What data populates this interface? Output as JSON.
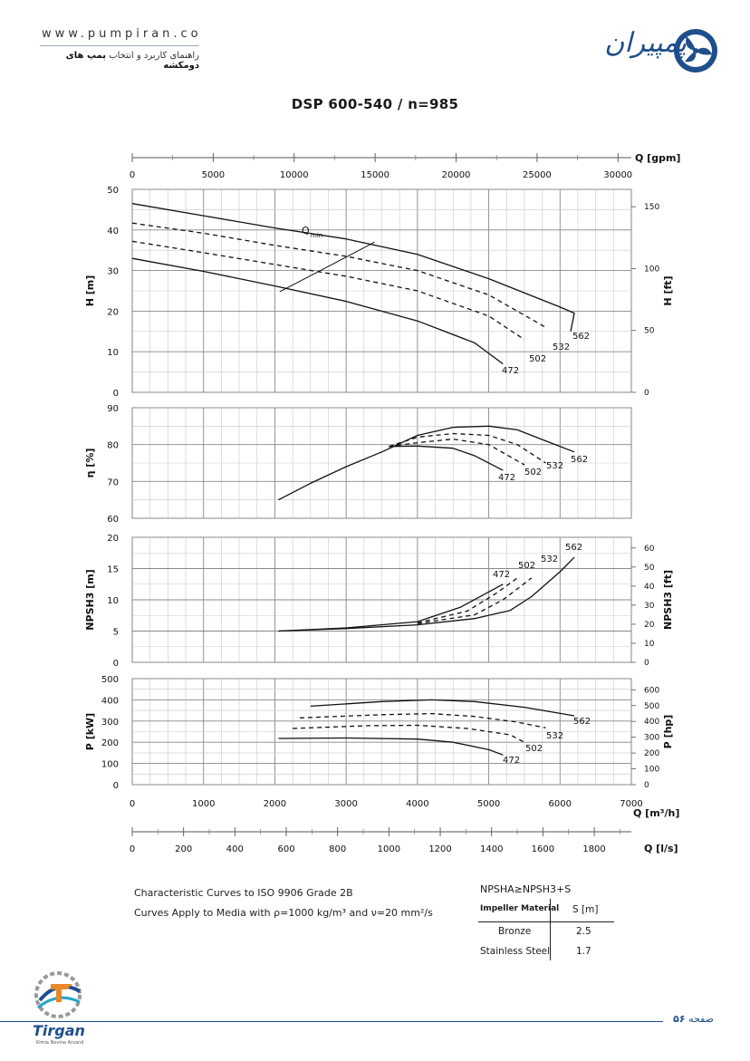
{
  "header": {
    "url": "www.pumpiran.co",
    "subtitle_prefix": "راهنمای کاربرد و انتخاب",
    "subtitle_bold": "پمپ های دومکشه",
    "brand": "پمپیران"
  },
  "title": "DSP 600-540 / n=985",
  "colors": {
    "brand": "#1f4e8c",
    "grid": "#8c8c8c",
    "curve": "#1a1a1a"
  },
  "chart_data": [
    {
      "type": "line",
      "panel": "head",
      "ylabel": "H [m]",
      "ylabel_right": "H [ft]",
      "ylim": [
        0,
        50
      ],
      "yticks": [
        0,
        10,
        20,
        30,
        40,
        50
      ],
      "yticks_right": [
        0,
        50,
        100,
        150
      ],
      "xlim": [
        0,
        7000
      ],
      "annotation": "Qmin",
      "qmin_line": [
        [
          3400,
          37
        ],
        [
          2070,
          24.8
        ]
      ],
      "series": [
        {
          "name": "562",
          "style": "solid",
          "points": [
            [
              0,
              46.5
            ],
            [
              1000,
              43.5
            ],
            [
              2000,
              40.5
            ],
            [
              3000,
              37.8
            ],
            [
              4000,
              34
            ],
            [
              5000,
              28
            ],
            [
              6000,
              21
            ],
            [
              6200,
              19.5
            ],
            [
              6150,
              15
            ]
          ]
        },
        {
          "name": "532",
          "style": "dashed",
          "points": [
            [
              0,
              41.7
            ],
            [
              1000,
              39.2
            ],
            [
              2000,
              36.2
            ],
            [
              3000,
              33.5
            ],
            [
              4000,
              30
            ],
            [
              5000,
              24
            ],
            [
              5800,
              16
            ]
          ]
        },
        {
          "name": "502",
          "style": "dashed",
          "points": [
            [
              0,
              37.2
            ],
            [
              1000,
              34.4
            ],
            [
              2000,
              31.5
            ],
            [
              3000,
              28.6
            ],
            [
              4000,
              25
            ],
            [
              5000,
              18.8
            ],
            [
              5500,
              13
            ]
          ]
        },
        {
          "name": "472",
          "style": "solid",
          "points": [
            [
              0,
              33
            ],
            [
              1000,
              29.8
            ],
            [
              2000,
              26.2
            ],
            [
              3000,
              22.4
            ],
            [
              4000,
              17.6
            ],
            [
              4800,
              12.2
            ],
            [
              5200,
              7
            ]
          ]
        }
      ]
    },
    {
      "type": "line",
      "panel": "efficiency",
      "ylabel": "η [%]",
      "ylim": [
        60,
        90
      ],
      "yticks": [
        60,
        70,
        80,
        90
      ],
      "xlim": [
        0,
        7000
      ],
      "series": [
        {
          "name": "562",
          "style": "solid",
          "points": [
            [
              2050,
              65
            ],
            [
              2500,
              69.5
            ],
            [
              3000,
              74
            ],
            [
              3500,
              78
            ],
            [
              4000,
              82.5
            ],
            [
              4500,
              84.7
            ],
            [
              5000,
              85
            ],
            [
              5400,
              84
            ],
            [
              5800,
              81
            ],
            [
              6200,
              78
            ]
          ]
        },
        {
          "name": "532",
          "style": "dashed",
          "points": [
            [
              3600,
              79.5
            ],
            [
              4000,
              82
            ],
            [
              4500,
              83
            ],
            [
              5000,
              82.5
            ],
            [
              5400,
              80
            ],
            [
              5800,
              75
            ]
          ]
        },
        {
          "name": "502",
          "style": "dashed",
          "points": [
            [
              3600,
              79.5
            ],
            [
              4000,
              80.5
            ],
            [
              4500,
              81.5
            ],
            [
              5000,
              80
            ],
            [
              5500,
              74.5
            ]
          ]
        },
        {
          "name": "472",
          "style": "solid",
          "points": [
            [
              3600,
              79.5
            ],
            [
              4000,
              79.6
            ],
            [
              4500,
              79
            ],
            [
              4800,
              77
            ],
            [
              5200,
              73
            ]
          ]
        }
      ]
    },
    {
      "type": "line",
      "panel": "npsh",
      "ylabel": "NPSH3 [m]",
      "ylabel_right": "NPSH3 [ft]",
      "ylim": [
        0,
        20
      ],
      "yticks": [
        0,
        5,
        10,
        15,
        20
      ],
      "yticks_right": [
        0,
        10,
        20,
        30,
        40,
        50,
        60
      ],
      "xlim": [
        0,
        7000
      ],
      "series": [
        {
          "name": "562",
          "style": "solid",
          "points": [
            [
              2050,
              5
            ],
            [
              3000,
              5.4
            ],
            [
              4000,
              6
            ],
            [
              4800,
              7
            ],
            [
              5300,
              8.3
            ],
            [
              5600,
              10.5
            ],
            [
              6000,
              14.5
            ],
            [
              6200,
              16.8
            ]
          ]
        },
        {
          "name": "532",
          "style": "dashed",
          "points": [
            [
              4000,
              6.2
            ],
            [
              4800,
              7.6
            ],
            [
              5200,
              10
            ],
            [
              5600,
              13.5
            ]
          ]
        },
        {
          "name": "502",
          "style": "dashed",
          "points": [
            [
              4000,
              6.3
            ],
            [
              4700,
              8.2
            ],
            [
              5100,
              11
            ],
            [
              5400,
              13.5
            ]
          ]
        },
        {
          "name": "472",
          "style": "solid",
          "points": [
            [
              2050,
              5
            ],
            [
              3000,
              5.5
            ],
            [
              4000,
              6.5
            ],
            [
              4600,
              8.8
            ],
            [
              5200,
              12.5
            ]
          ]
        }
      ]
    },
    {
      "type": "line",
      "panel": "power",
      "ylabel": "P [kW]",
      "ylabel_right": "P [hp]",
      "ylim": [
        0,
        500
      ],
      "yticks": [
        0,
        100,
        200,
        300,
        400,
        500
      ],
      "yticks_right": [
        0,
        100,
        200,
        300,
        400,
        500,
        600
      ],
      "xlim": [
        0,
        7000
      ],
      "xticks": [
        0,
        1000,
        2000,
        3000,
        4000,
        5000,
        6000,
        7000
      ],
      "series": [
        {
          "name": "562",
          "style": "solid",
          "points": [
            [
              2500,
              370
            ],
            [
              3500,
              392
            ],
            [
              4200,
              400
            ],
            [
              4800,
              392
            ],
            [
              5500,
              365
            ],
            [
              6200,
              325
            ]
          ]
        },
        {
          "name": "532",
          "style": "dashed",
          "points": [
            [
              2350,
              315
            ],
            [
              3500,
              330
            ],
            [
              4200,
              335
            ],
            [
              4800,
              322
            ],
            [
              5400,
              295
            ],
            [
              5800,
              268
            ]
          ]
        },
        {
          "name": "502",
          "style": "dashed",
          "points": [
            [
              2250,
              265
            ],
            [
              3300,
              278
            ],
            [
              4000,
              280
            ],
            [
              4700,
              265
            ],
            [
              5300,
              235
            ],
            [
              5500,
              200
            ]
          ]
        },
        {
          "name": "472",
          "style": "solid",
          "points": [
            [
              2050,
              218
            ],
            [
              3000,
              220
            ],
            [
              4000,
              215
            ],
            [
              4500,
              200
            ],
            [
              5000,
              165
            ],
            [
              5200,
              140
            ]
          ]
        }
      ]
    }
  ],
  "axes": {
    "gpm_label": "Q [gpm]",
    "gpm_ticks": [
      "0",
      "5000",
      "10000",
      "15000",
      "20000",
      "25000",
      "30000"
    ],
    "m3h_label": "Q [m³/h]",
    "m3h_ticks": [
      "0",
      "1000",
      "2000",
      "3000",
      "4000",
      "5000",
      "6000",
      "7000"
    ],
    "ls_label": "Q [l/s]",
    "ls_ticks": [
      "0",
      "200",
      "400",
      "600",
      "800",
      "1000",
      "1200",
      "1400",
      "1600",
      "1800"
    ]
  },
  "notes": {
    "line1": "Characteristic Curves to ISO 9906 Grade 2B",
    "line2": "Curves Apply to Media with ρ=1000 kg/m³ and ν=20 mm²/s"
  },
  "npsh_table": {
    "equation": "NPSHA≥NPSH3+S",
    "header_material": "Impeller Material",
    "header_s": "S [m]",
    "rows": [
      {
        "material": "Bronze",
        "s": "2.5"
      },
      {
        "material": "Stainless Steel",
        "s": "1.7"
      }
    ]
  },
  "footer": {
    "page_label": "صفحه",
    "page_number": "۵۶",
    "logo_text": "Tirgan",
    "logo_sub": "Kimia Novine Arvand"
  }
}
